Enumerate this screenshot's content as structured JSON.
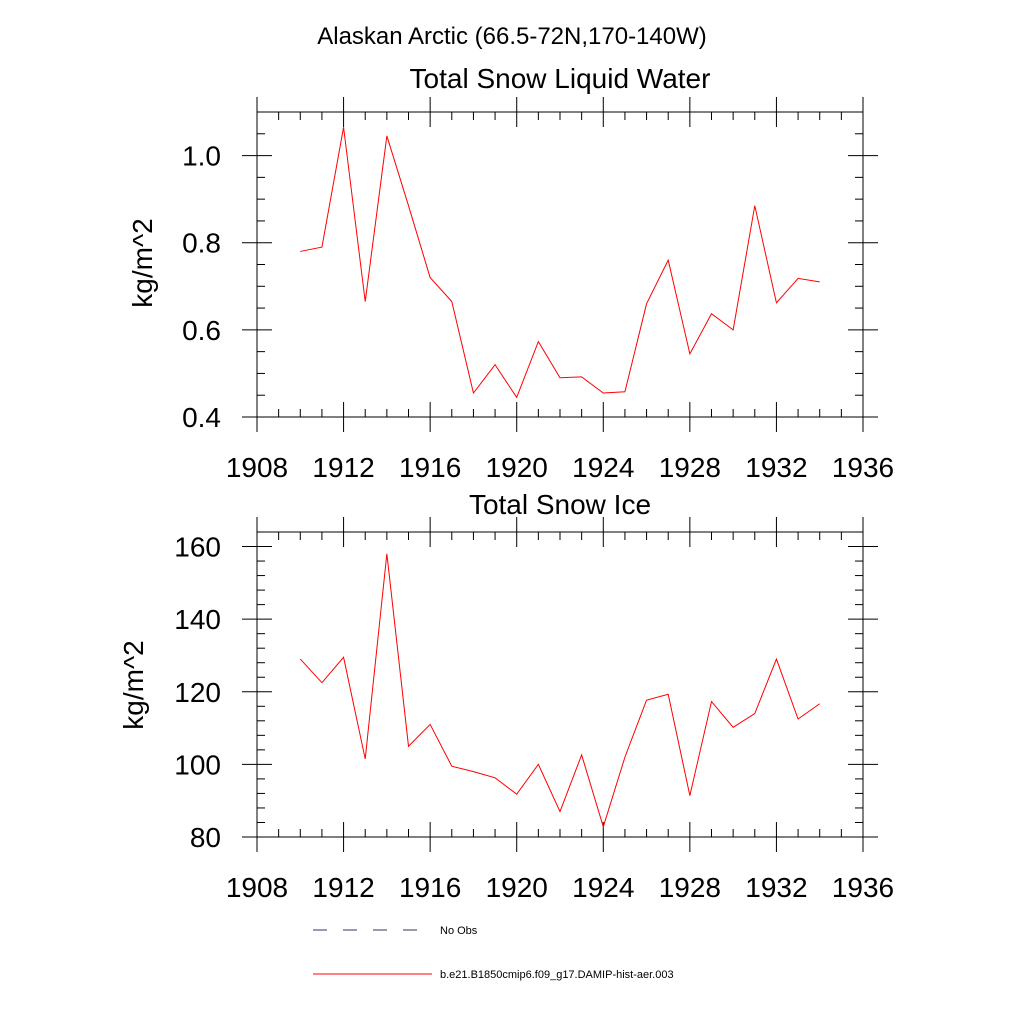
{
  "figure": {
    "title": "Alaskan Arctic (66.5-72N,170-140W)"
  },
  "colors": {
    "series": "#ff0000",
    "no_obs": "#333366",
    "axes": "#000000"
  },
  "chart_data": [
    {
      "type": "line",
      "title": "Total Snow Liquid Water",
      "xlabel": "",
      "ylabel": "kg/m^2",
      "xlim": [
        1908,
        1936
      ],
      "ylim": [
        0.4,
        1.1
      ],
      "xticks": [
        1908,
        1912,
        1916,
        1920,
        1924,
        1928,
        1932,
        1936
      ],
      "xtick_labels": [
        "1908",
        "1912",
        "1916",
        "1920",
        "1924",
        "1928",
        "1932",
        "1936"
      ],
      "yticks": [
        0.4,
        0.6,
        0.8,
        1.0
      ],
      "ytick_labels": [
        "0.4",
        "0.6",
        "0.8",
        "1.0"
      ],
      "x_minor_step": 1,
      "y_minor_step": 0.05,
      "grid": false,
      "x": [
        1910,
        1911,
        1912,
        1913,
        1914,
        1915,
        1916,
        1917,
        1918,
        1919,
        1920,
        1921,
        1922,
        1923,
        1924,
        1925,
        1926,
        1927,
        1928,
        1929,
        1930,
        1931,
        1932,
        1933,
        1934
      ],
      "series": [
        {
          "name": "b.e21.B1850cmip6.f09_g17.DAMIP-hist-aer.003",
          "values": [
            0.78,
            0.79,
            1.065,
            0.665,
            1.045,
            0.885,
            0.72,
            0.665,
            0.455,
            0.52,
            0.445,
            0.573,
            0.49,
            0.492,
            0.455,
            0.458,
            0.66,
            0.76,
            0.545,
            0.637,
            0.6,
            0.885,
            0.662,
            0.718,
            0.71
          ]
        }
      ]
    },
    {
      "type": "line",
      "title": "Total Snow Ice",
      "xlabel": "",
      "ylabel": "kg/m^2",
      "xlim": [
        1908,
        1936
      ],
      "ylim": [
        80,
        164
      ],
      "xticks": [
        1908,
        1912,
        1916,
        1920,
        1924,
        1928,
        1932,
        1936
      ],
      "xtick_labels": [
        "1908",
        "1912",
        "1916",
        "1920",
        "1924",
        "1928",
        "1932",
        "1936"
      ],
      "yticks": [
        80,
        100,
        120,
        140,
        160
      ],
      "ytick_labels": [
        "80",
        "100",
        "120",
        "140",
        "160"
      ],
      "x_minor_step": 1,
      "y_minor_step": 4,
      "grid": false,
      "x": [
        1910,
        1911,
        1912,
        1913,
        1914,
        1915,
        1916,
        1917,
        1918,
        1919,
        1920,
        1921,
        1922,
        1923,
        1924,
        1925,
        1926,
        1927,
        1928,
        1929,
        1930,
        1931,
        1932,
        1933,
        1934
      ],
      "series": [
        {
          "name": "b.e21.B1850cmip6.f09_g17.DAMIP-hist-aer.003",
          "values": [
            129,
            122.5,
            129.5,
            101.5,
            158,
            105,
            111,
            99.5,
            98,
            96.3,
            91.8,
            100,
            87,
            102.6,
            82.8,
            102,
            117.7,
            119.3,
            91.4,
            117.3,
            110.2,
            114,
            129,
            112.5,
            116.7
          ]
        }
      ]
    }
  ],
  "legend": {
    "placement": "bottom",
    "entries": [
      {
        "label": "No Obs",
        "style": "dashed",
        "color": "#333366"
      },
      {
        "label": "b.e21.B1850cmip6.f09_g17.DAMIP-hist-aer.003",
        "style": "solid",
        "color": "#ff0000"
      }
    ]
  }
}
